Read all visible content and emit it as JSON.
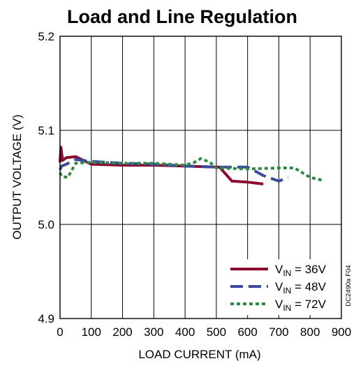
{
  "chart_data": {
    "type": "line",
    "title": "Load and Line Regulation",
    "xlabel": "LOAD CURRENT (mA)",
    "ylabel": "OUTPUT VOLTAGE (V)",
    "xlim": [
      0,
      900
    ],
    "ylim": [
      4.9,
      5.2
    ],
    "x_ticks": [
      0,
      100,
      200,
      300,
      400,
      500,
      600,
      700,
      800,
      900
    ],
    "x_tick_labels": [
      "0",
      "100",
      "200",
      "300",
      "400",
      "500",
      "600",
      "700",
      "800",
      "900"
    ],
    "y_ticks": [
      4.9,
      5.0,
      5.1,
      5.2
    ],
    "y_tick_labels": [
      "4.9",
      "5.0",
      "5.1",
      "5.2"
    ],
    "grid": true,
    "legend_position": "bottom-right",
    "figure_id": "DC2490a F04",
    "series": [
      {
        "name_main": "V",
        "name_sub": "IN",
        "name_rest": " = 36V",
        "color": "#8b0a2e",
        "style": "solid",
        "x": [
          0,
          3,
          8,
          20,
          50,
          100,
          200,
          300,
          400,
          500,
          510,
          550,
          600,
          650
        ],
        "y": [
          5.066,
          5.082,
          5.068,
          5.071,
          5.072,
          5.064,
          5.063,
          5.063,
          5.062,
          5.061,
          5.061,
          5.046,
          5.045,
          5.043
        ]
      },
      {
        "name_main": "V",
        "name_sub": "IN",
        "name_rest": " = 48V",
        "color": "#3a4a9c",
        "style": "dashed",
        "x": [
          0,
          5,
          20,
          50,
          100,
          200,
          300,
          400,
          500,
          560,
          600,
          650,
          700,
          730
        ],
        "y": [
          5.058,
          5.062,
          5.064,
          5.069,
          5.067,
          5.065,
          5.064,
          5.062,
          5.061,
          5.061,
          5.061,
          5.052,
          5.046,
          5.05
        ]
      },
      {
        "name_main": "V",
        "name_sub": "IN",
        "name_rest": " = 72V",
        "color": "#2f8a45",
        "style": "dotted",
        "x": [
          0,
          5,
          25,
          50,
          100,
          200,
          300,
          400,
          430,
          450,
          480,
          500,
          600,
          700,
          750,
          800,
          840
        ],
        "y": [
          5.055,
          5.051,
          5.05,
          5.065,
          5.066,
          5.065,
          5.065,
          5.063,
          5.066,
          5.07,
          5.066,
          5.06,
          5.059,
          5.06,
          5.06,
          5.05,
          5.047
        ]
      }
    ]
  }
}
